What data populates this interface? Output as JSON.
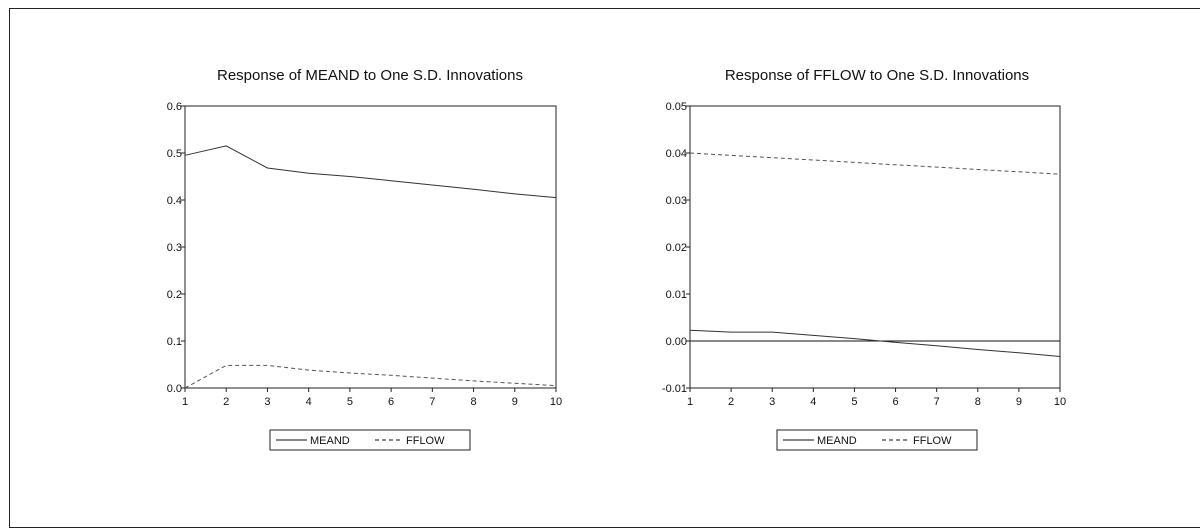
{
  "chart_data": [
    {
      "type": "line",
      "title": "Response of MEAND to One S.D. Innovations",
      "x": [
        1,
        2,
        3,
        4,
        5,
        6,
        7,
        8,
        9,
        10
      ],
      "ylim": [
        0.0,
        0.6
      ],
      "yticks": [
        "0.6",
        "0.5",
        "0.4",
        "0.3",
        "0.2",
        "0.1",
        "0.0"
      ],
      "xticks": [
        "1",
        "2",
        "3",
        "4",
        "5",
        "6",
        "7",
        "8",
        "9",
        "10"
      ],
      "zero_line": false,
      "series": [
        {
          "name": "MEAND",
          "style": "solid",
          "values": [
            0.495,
            0.515,
            0.468,
            0.457,
            0.45,
            0.441,
            0.432,
            0.423,
            0.413,
            0.405
          ]
        },
        {
          "name": "FFLOW",
          "style": "dashed",
          "values": [
            0.0,
            0.048,
            0.048,
            0.038,
            0.032,
            0.027,
            0.021,
            0.015,
            0.01,
            0.005
          ]
        }
      ],
      "legend": [
        "MEAND",
        "FFLOW"
      ]
    },
    {
      "type": "line",
      "title": "Response of FFLOW to One S.D. Innovations",
      "x": [
        1,
        2,
        3,
        4,
        5,
        6,
        7,
        8,
        9,
        10
      ],
      "ylim": [
        -0.01,
        0.05
      ],
      "yticks": [
        "0.05",
        "0.04",
        "0.03",
        "0.02",
        "0.01",
        "0.00",
        "-0.01"
      ],
      "xticks": [
        "1",
        "2",
        "3",
        "4",
        "5",
        "6",
        "7",
        "8",
        "9",
        "10"
      ],
      "zero_line": true,
      "series": [
        {
          "name": "MEAND",
          "style": "solid",
          "values": [
            0.0023,
            0.0019,
            0.0019,
            0.0012,
            0.0005,
            -0.0003,
            -0.001,
            -0.0018,
            -0.0025,
            -0.0033
          ]
        },
        {
          "name": "FFLOW",
          "style": "dashed",
          "values": [
            0.04,
            0.0395,
            0.039,
            0.0385,
            0.038,
            0.0375,
            0.037,
            0.0365,
            0.036,
            0.0355
          ]
        }
      ],
      "legend": [
        "MEAND",
        "FFLOW"
      ]
    }
  ]
}
